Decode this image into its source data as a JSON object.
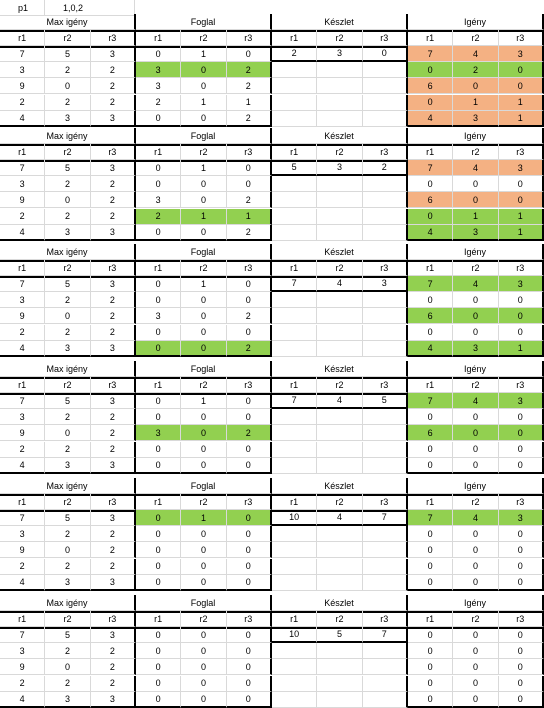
{
  "header": {
    "label": "p1",
    "value": "1,0,2"
  },
  "colors": {
    "green": "#92d050",
    "orange": "#f4b183"
  },
  "blocks": [
    {
      "groups": [
        "Max igény",
        "Foglal",
        "Készlet",
        "Igény"
      ],
      "cols": [
        "r1",
        "r2",
        "r3",
        "r1",
        "r2",
        "r3",
        "r1",
        "r2",
        "r3",
        "r1",
        "r2",
        "r3"
      ],
      "max": [
        [
          "7",
          "5",
          "3"
        ],
        [
          "3",
          "2",
          "2"
        ],
        [
          "9",
          "0",
          "2"
        ],
        [
          "2",
          "2",
          "2"
        ],
        [
          "4",
          "3",
          "3"
        ]
      ],
      "foglal": [
        [
          "0",
          "1",
          "0"
        ],
        [
          "3",
          "0",
          "2"
        ],
        [
          "3",
          "0",
          "2"
        ],
        [
          "2",
          "1",
          "1"
        ],
        [
          "0",
          "0",
          "2"
        ]
      ],
      "keszlet": [
        "2",
        "3",
        "0"
      ],
      "igeny": [
        [
          "7",
          "4",
          "3"
        ],
        [
          "0",
          "2",
          "0"
        ],
        [
          "6",
          "0",
          "0"
        ],
        [
          "0",
          "1",
          "1"
        ],
        [
          "4",
          "3",
          "1"
        ]
      ],
      "foglal_green": [
        1
      ],
      "igeny_colors": [
        "orange",
        "green",
        "orange",
        "orange",
        "orange"
      ]
    },
    {
      "groups": [
        "Max igény",
        "Foglal",
        "Készlet",
        "Igény"
      ],
      "cols": [
        "r1",
        "r2",
        "r3",
        "r1",
        "r2",
        "r3",
        "r1",
        "r2",
        "r3",
        "r1",
        "r2",
        "r3"
      ],
      "max": [
        [
          "7",
          "5",
          "3"
        ],
        [
          "3",
          "2",
          "2"
        ],
        [
          "9",
          "0",
          "2"
        ],
        [
          "2",
          "2",
          "2"
        ],
        [
          "4",
          "3",
          "3"
        ]
      ],
      "foglal": [
        [
          "0",
          "1",
          "0"
        ],
        [
          "0",
          "0",
          "0"
        ],
        [
          "3",
          "0",
          "2"
        ],
        [
          "2",
          "1",
          "1"
        ],
        [
          "0",
          "0",
          "2"
        ]
      ],
      "keszlet": [
        "5",
        "3",
        "2"
      ],
      "igeny": [
        [
          "7",
          "4",
          "3"
        ],
        [
          "0",
          "0",
          "0"
        ],
        [
          "6",
          "0",
          "0"
        ],
        [
          "0",
          "1",
          "1"
        ],
        [
          "4",
          "3",
          "1"
        ]
      ],
      "foglal_green": [
        3
      ],
      "igeny_colors": [
        "orange",
        "none",
        "orange",
        "green",
        "green"
      ]
    },
    {
      "groups": [
        "Max igény",
        "Foglal",
        "Készlet",
        "Igény"
      ],
      "cols": [
        "r1",
        "r2",
        "r3",
        "r1",
        "r2",
        "r3",
        "r1",
        "r2",
        "r3",
        "r1",
        "r2",
        "r3"
      ],
      "max": [
        [
          "7",
          "5",
          "3"
        ],
        [
          "3",
          "2",
          "2"
        ],
        [
          "9",
          "0",
          "2"
        ],
        [
          "2",
          "2",
          "2"
        ],
        [
          "4",
          "3",
          "3"
        ]
      ],
      "foglal": [
        [
          "0",
          "1",
          "0"
        ],
        [
          "0",
          "0",
          "0"
        ],
        [
          "3",
          "0",
          "2"
        ],
        [
          "0",
          "0",
          "0"
        ],
        [
          "0",
          "0",
          "2"
        ]
      ],
      "keszlet": [
        "7",
        "4",
        "3"
      ],
      "igeny": [
        [
          "7",
          "4",
          "3"
        ],
        [
          "0",
          "0",
          "0"
        ],
        [
          "6",
          "0",
          "0"
        ],
        [
          "0",
          "0",
          "0"
        ],
        [
          "4",
          "3",
          "1"
        ]
      ],
      "foglal_green": [
        4
      ],
      "igeny_colors": [
        "green",
        "none",
        "green",
        "none",
        "green"
      ]
    },
    {
      "groups": [
        "Max igény",
        "Foglal",
        "Készlet",
        "Igény"
      ],
      "cols": [
        "r1",
        "r2",
        "r3",
        "r1",
        "r2",
        "r3",
        "r1",
        "r2",
        "r3",
        "r1",
        "r2",
        "r3"
      ],
      "max": [
        [
          "7",
          "5",
          "3"
        ],
        [
          "3",
          "2",
          "2"
        ],
        [
          "9",
          "0",
          "2"
        ],
        [
          "2",
          "2",
          "2"
        ],
        [
          "4",
          "3",
          "3"
        ]
      ],
      "foglal": [
        [
          "0",
          "1",
          "0"
        ],
        [
          "0",
          "0",
          "0"
        ],
        [
          "3",
          "0",
          "2"
        ],
        [
          "0",
          "0",
          "0"
        ],
        [
          "0",
          "0",
          "0"
        ]
      ],
      "keszlet": [
        "7",
        "4",
        "5"
      ],
      "igeny": [
        [
          "7",
          "4",
          "3"
        ],
        [
          "0",
          "0",
          "0"
        ],
        [
          "6",
          "0",
          "0"
        ],
        [
          "0",
          "0",
          "0"
        ],
        [
          "0",
          "0",
          "0"
        ]
      ],
      "foglal_green": [
        2
      ],
      "igeny_colors": [
        "green",
        "none",
        "green",
        "none",
        "none"
      ]
    },
    {
      "groups": [
        "Max igény",
        "Foglal",
        "Készlet",
        "Igény"
      ],
      "cols": [
        "r1",
        "r2",
        "r3",
        "r1",
        "r2",
        "r3",
        "r1",
        "r2",
        "r3",
        "r1",
        "r2",
        "r3"
      ],
      "max": [
        [
          "7",
          "5",
          "3"
        ],
        [
          "3",
          "2",
          "2"
        ],
        [
          "9",
          "0",
          "2"
        ],
        [
          "2",
          "2",
          "2"
        ],
        [
          "4",
          "3",
          "3"
        ]
      ],
      "foglal": [
        [
          "0",
          "1",
          "0"
        ],
        [
          "0",
          "0",
          "0"
        ],
        [
          "0",
          "0",
          "0"
        ],
        [
          "0",
          "0",
          "0"
        ],
        [
          "0",
          "0",
          "0"
        ]
      ],
      "keszlet": [
        "10",
        "4",
        "7"
      ],
      "igeny": [
        [
          "7",
          "4",
          "3"
        ],
        [
          "0",
          "0",
          "0"
        ],
        [
          "0",
          "0",
          "0"
        ],
        [
          "0",
          "0",
          "0"
        ],
        [
          "0",
          "0",
          "0"
        ]
      ],
      "foglal_green": [
        0
      ],
      "igeny_colors": [
        "green",
        "none",
        "none",
        "none",
        "none"
      ]
    },
    {
      "groups": [
        "Max igény",
        "Foglal",
        "Készlet",
        "Igény"
      ],
      "cols": [
        "r1",
        "r2",
        "r3",
        "r1",
        "r2",
        "r3",
        "r1",
        "r2",
        "r3",
        "r1",
        "r2",
        "r3"
      ],
      "max": [
        [
          "7",
          "5",
          "3"
        ],
        [
          "3",
          "2",
          "2"
        ],
        [
          "9",
          "0",
          "2"
        ],
        [
          "2",
          "2",
          "2"
        ],
        [
          "4",
          "3",
          "3"
        ]
      ],
      "foglal": [
        [
          "0",
          "0",
          "0"
        ],
        [
          "0",
          "0",
          "0"
        ],
        [
          "0",
          "0",
          "0"
        ],
        [
          "0",
          "0",
          "0"
        ],
        [
          "0",
          "0",
          "0"
        ]
      ],
      "keszlet": [
        "10",
        "5",
        "7"
      ],
      "igeny": [
        [
          "0",
          "0",
          "0"
        ],
        [
          "0",
          "0",
          "0"
        ],
        [
          "0",
          "0",
          "0"
        ],
        [
          "0",
          "0",
          "0"
        ],
        [
          "0",
          "0",
          "0"
        ]
      ],
      "foglal_green": [],
      "igeny_colors": [
        "none",
        "none",
        "none",
        "none",
        "none"
      ]
    }
  ]
}
